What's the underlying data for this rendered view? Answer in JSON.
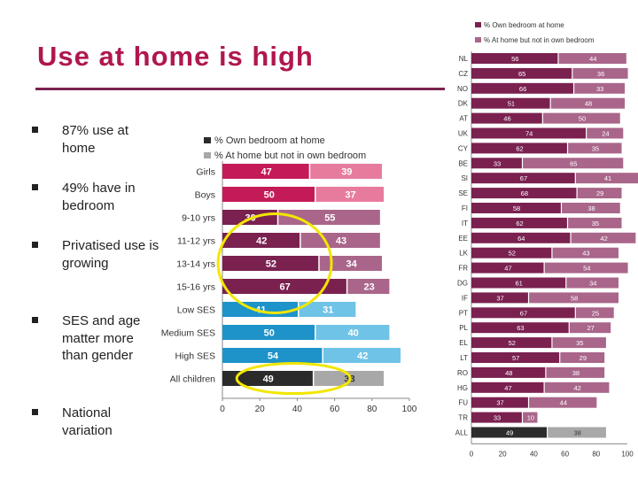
{
  "title": "Use at home is high",
  "bullets": [
    "87% use at home",
    "49% have in bedroom",
    "Privatised use is growing",
    "SES and age matter more than gender",
    "National variation"
  ],
  "colors": {
    "title": "#b0174f",
    "rule": "#7b2150",
    "gender_own": "#c41a57",
    "gender_home": "#e77b9e",
    "age_own": "#7a2150",
    "age_home": "#a9668a",
    "ses_own": "#1e93c9",
    "ses_home": "#6fc3e6",
    "all_own": "#2b2b2b",
    "all_home": "#a8a8a8",
    "highlight": "#f2e600"
  },
  "chart_data": [
    {
      "type": "bar",
      "orientation": "horizontal",
      "stacked": true,
      "title": "",
      "categories": [
        "Girls",
        "Boys",
        "9-10 yrs",
        "11-12 yrs",
        "13-14 yrs",
        "15-16 yrs",
        "Low SES",
        "Medium SES",
        "High SES",
        "All children"
      ],
      "groups": [
        "gender",
        "gender",
        "age",
        "age",
        "age",
        "age",
        "ses",
        "ses",
        "ses",
        "all"
      ],
      "series": [
        {
          "name": "% Own bedroom at home",
          "values": [
            47,
            50,
            30,
            42,
            52,
            67,
            41,
            50,
            54,
            49
          ]
        },
        {
          "name": "% At home but not in own bedroom",
          "values": [
            39,
            37,
            55,
            43,
            34,
            23,
            31,
            40,
            42,
            38
          ]
        }
      ],
      "xlim": [
        0,
        100
      ],
      "xticks": [
        0,
        20,
        40,
        60,
        80,
        100
      ],
      "legend": [
        "% Own bedroom at home",
        "% At home but not in own bedroom"
      ],
      "highlighted": [
        "13-14 yrs",
        "15-16 yrs",
        "All children"
      ]
    },
    {
      "type": "bar",
      "orientation": "horizontal",
      "stacked": true,
      "title": "",
      "categories": [
        "NL",
        "CZ",
        "NO",
        "DK",
        "AT",
        "UK",
        "CY",
        "BE",
        "SI",
        "SE",
        "FI",
        "IT",
        "EE",
        "LK",
        "FR",
        "DG",
        "IF",
        "PT",
        "PL",
        "EL",
        "LT",
        "RO",
        "HG",
        "FU",
        "TR",
        "ALL"
      ],
      "series": [
        {
          "name": "% Own bedroom at home",
          "values": [
            56,
            65,
            66,
            51,
            46,
            74,
            62,
            33,
            67,
            68,
            58,
            62,
            64,
            52,
            47,
            61,
            37,
            67,
            63,
            52,
            57,
            48,
            47,
            37,
            33,
            49
          ]
        },
        {
          "name": "% At home but not in own bedroom",
          "values": [
            44,
            36,
            33,
            48,
            50,
            24,
            35,
            65,
            41,
            29,
            38,
            35,
            42,
            43,
            54,
            34,
            58,
            25,
            27,
            35,
            29,
            38,
            42,
            44,
            10,
            38
          ]
        }
      ],
      "xlim": [
        0,
        100
      ],
      "xticks": [
        0,
        20,
        40,
        60,
        80,
        100
      ],
      "legend": [
        "% Own bedroom at home",
        "% At home but not in own bedroom"
      ]
    }
  ]
}
